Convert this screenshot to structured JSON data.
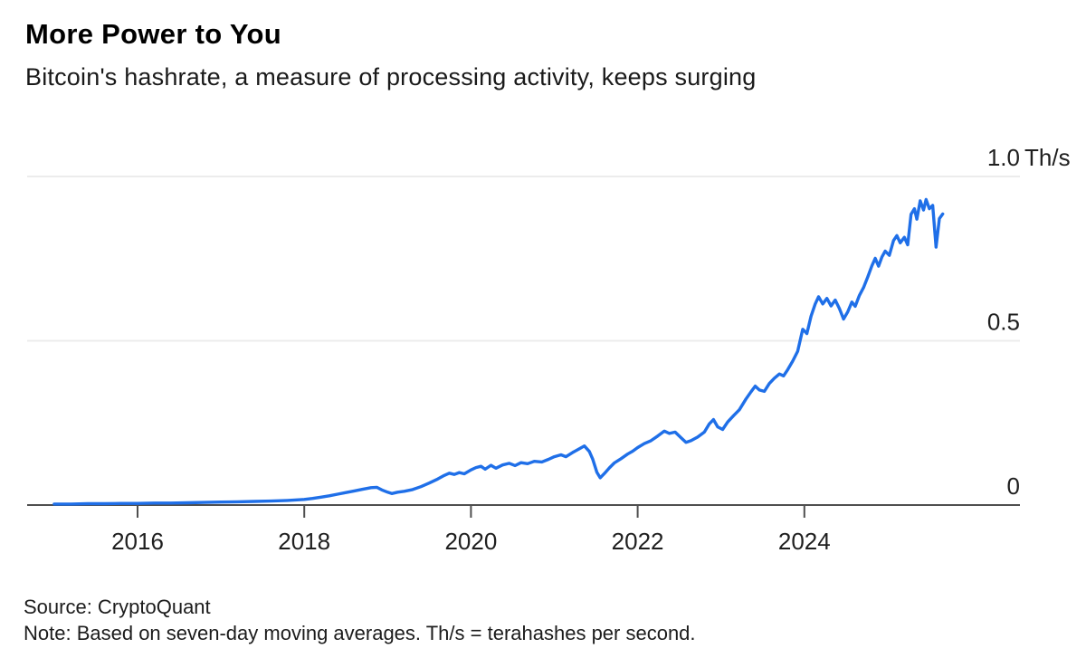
{
  "header": {
    "title": "More Power to You",
    "subtitle": "Bitcoin's hashrate, a measure of processing activity, keeps surging"
  },
  "footer": {
    "source": "Source: CryptoQuant",
    "note": "Note: Based on seven-day moving averages. Th/s = terahashes per second."
  },
  "colors": {
    "line": "#1f6fe8",
    "grid": "#ececec",
    "axis": "#4f4f4f",
    "text": "#1a1a1a"
  },
  "chart_data": {
    "type": "line",
    "title": "More Power to You",
    "subtitle": "Bitcoin's hashrate, a measure of processing activity, keeps surging",
    "series_name": "Bitcoin hashrate (seven-day moving average)",
    "unit": "Th/s",
    "xlabel": "",
    "ylabel": "Th/s",
    "xlim": [
      2014.68,
      2026.59
    ],
    "ylim": [
      0,
      1.0
    ],
    "grid": "horizontal-only",
    "legend": "none",
    "line_color": "#1f6fe8",
    "x_ticks": [
      2016,
      2018,
      2020,
      2022,
      2024
    ],
    "x_tick_labels": [
      "2016",
      "2018",
      "2020",
      "2022",
      "2024"
    ],
    "y_ticks": [
      {
        "value": 1.0,
        "label": "1.0",
        "unit": "Th/s"
      },
      {
        "value": 0.5,
        "label": "0.5"
      },
      {
        "value": 0,
        "label": "0"
      }
    ],
    "points": [
      [
        2015.0,
        0.003
      ],
      [
        2015.2,
        0.003
      ],
      [
        2015.4,
        0.004
      ],
      [
        2015.6,
        0.004
      ],
      [
        2015.8,
        0.005
      ],
      [
        2016.0,
        0.005
      ],
      [
        2016.2,
        0.006
      ],
      [
        2016.4,
        0.006
      ],
      [
        2016.6,
        0.007
      ],
      [
        2016.8,
        0.008
      ],
      [
        2017.0,
        0.009
      ],
      [
        2017.2,
        0.01
      ],
      [
        2017.4,
        0.011
      ],
      [
        2017.6,
        0.012
      ],
      [
        2017.8,
        0.014
      ],
      [
        2018.0,
        0.017
      ],
      [
        2018.1,
        0.02
      ],
      [
        2018.2,
        0.024
      ],
      [
        2018.3,
        0.028
      ],
      [
        2018.4,
        0.033
      ],
      [
        2018.5,
        0.038
      ],
      [
        2018.6,
        0.043
      ],
      [
        2018.7,
        0.048
      ],
      [
        2018.8,
        0.053
      ],
      [
        2018.87,
        0.054
      ],
      [
        2018.93,
        0.046
      ],
      [
        2019.0,
        0.039
      ],
      [
        2019.05,
        0.035
      ],
      [
        2019.12,
        0.039
      ],
      [
        2019.2,
        0.042
      ],
      [
        2019.3,
        0.047
      ],
      [
        2019.4,
        0.056
      ],
      [
        2019.5,
        0.067
      ],
      [
        2019.6,
        0.079
      ],
      [
        2019.68,
        0.09
      ],
      [
        2019.74,
        0.097
      ],
      [
        2019.8,
        0.093
      ],
      [
        2019.86,
        0.099
      ],
      [
        2019.92,
        0.095
      ],
      [
        2020.0,
        0.107
      ],
      [
        2020.06,
        0.114
      ],
      [
        2020.12,
        0.118
      ],
      [
        2020.17,
        0.109
      ],
      [
        2020.24,
        0.121
      ],
      [
        2020.3,
        0.112
      ],
      [
        2020.38,
        0.122
      ],
      [
        2020.46,
        0.127
      ],
      [
        2020.53,
        0.12
      ],
      [
        2020.6,
        0.129
      ],
      [
        2020.68,
        0.126
      ],
      [
        2020.76,
        0.133
      ],
      [
        2020.85,
        0.131
      ],
      [
        2020.93,
        0.139
      ],
      [
        2021.0,
        0.147
      ],
      [
        2021.08,
        0.153
      ],
      [
        2021.14,
        0.147
      ],
      [
        2021.22,
        0.16
      ],
      [
        2021.3,
        0.171
      ],
      [
        2021.36,
        0.18
      ],
      [
        2021.42,
        0.163
      ],
      [
        2021.46,
        0.14
      ],
      [
        2021.51,
        0.1
      ],
      [
        2021.55,
        0.083
      ],
      [
        2021.6,
        0.096
      ],
      [
        2021.66,
        0.113
      ],
      [
        2021.72,
        0.128
      ],
      [
        2021.8,
        0.141
      ],
      [
        2021.88,
        0.155
      ],
      [
        2021.94,
        0.164
      ],
      [
        2022.0,
        0.175
      ],
      [
        2022.08,
        0.187
      ],
      [
        2022.16,
        0.196
      ],
      [
        2022.24,
        0.21
      ],
      [
        2022.32,
        0.225
      ],
      [
        2022.38,
        0.218
      ],
      [
        2022.45,
        0.222
      ],
      [
        2022.52,
        0.205
      ],
      [
        2022.58,
        0.191
      ],
      [
        2022.64,
        0.196
      ],
      [
        2022.72,
        0.207
      ],
      [
        2022.8,
        0.222
      ],
      [
        2022.86,
        0.247
      ],
      [
        2022.91,
        0.26
      ],
      [
        2022.96,
        0.238
      ],
      [
        2023.02,
        0.23
      ],
      [
        2023.08,
        0.253
      ],
      [
        2023.15,
        0.272
      ],
      [
        2023.22,
        0.29
      ],
      [
        2023.3,
        0.323
      ],
      [
        2023.36,
        0.345
      ],
      [
        2023.41,
        0.362
      ],
      [
        2023.46,
        0.35
      ],
      [
        2023.52,
        0.346
      ],
      [
        2023.58,
        0.37
      ],
      [
        2023.64,
        0.386
      ],
      [
        2023.7,
        0.399
      ],
      [
        2023.75,
        0.393
      ],
      [
        2023.8,
        0.412
      ],
      [
        2023.86,
        0.438
      ],
      [
        2023.92,
        0.468
      ],
      [
        2023.98,
        0.535
      ],
      [
        2024.03,
        0.522
      ],
      [
        2024.08,
        0.575
      ],
      [
        2024.13,
        0.612
      ],
      [
        2024.17,
        0.634
      ],
      [
        2024.22,
        0.612
      ],
      [
        2024.27,
        0.629
      ],
      [
        2024.32,
        0.606
      ],
      [
        2024.37,
        0.624
      ],
      [
        2024.42,
        0.598
      ],
      [
        2024.47,
        0.566
      ],
      [
        2024.52,
        0.588
      ],
      [
        2024.57,
        0.618
      ],
      [
        2024.61,
        0.605
      ],
      [
        2024.66,
        0.638
      ],
      [
        2024.71,
        0.662
      ],
      [
        2024.76,
        0.694
      ],
      [
        2024.81,
        0.728
      ],
      [
        2024.85,
        0.751
      ],
      [
        2024.89,
        0.727
      ],
      [
        2024.93,
        0.755
      ],
      [
        2024.97,
        0.773
      ],
      [
        2025.02,
        0.76
      ],
      [
        2025.07,
        0.805
      ],
      [
        2025.11,
        0.82
      ],
      [
        2025.15,
        0.798
      ],
      [
        2025.2,
        0.815
      ],
      [
        2025.24,
        0.792
      ],
      [
        2025.28,
        0.885
      ],
      [
        2025.32,
        0.902
      ],
      [
        2025.35,
        0.87
      ],
      [
        2025.39,
        0.926
      ],
      [
        2025.43,
        0.898
      ],
      [
        2025.46,
        0.93
      ],
      [
        2025.5,
        0.902
      ],
      [
        2025.54,
        0.912
      ],
      [
        2025.58,
        0.785
      ],
      [
        2025.62,
        0.872
      ],
      [
        2025.66,
        0.886
      ]
    ]
  }
}
